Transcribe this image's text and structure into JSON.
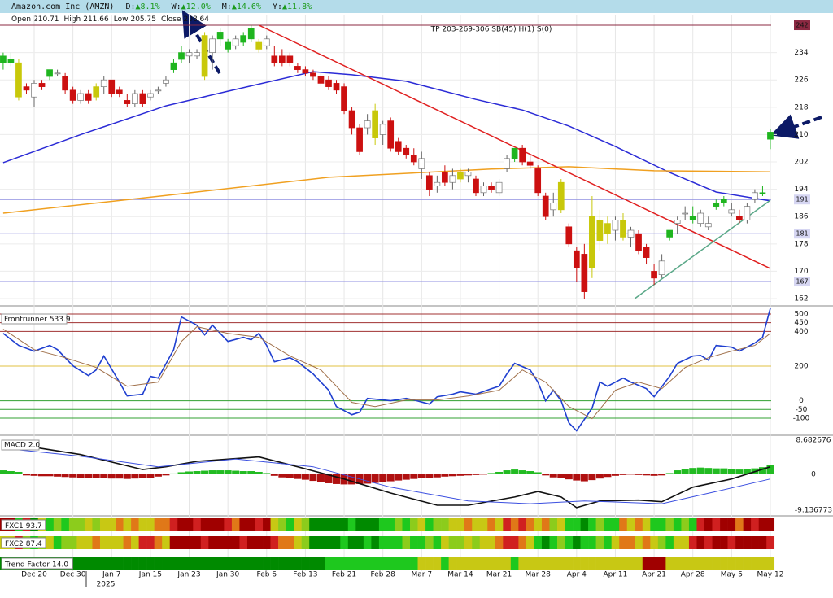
{
  "chart_data": [
    {
      "type": "candlestick",
      "title": "Amazon.com Inc (AMZN)",
      "changes": [
        {
          "label": "D:",
          "text": "▲8.1%"
        },
        {
          "label": "W:",
          "text": "▲12.0%"
        },
        {
          "label": "M:",
          "text": "▲14.6%"
        },
        {
          "label": "Y:",
          "text": "▲11.8%"
        }
      ],
      "ohlc_labels": [
        "Open",
        "High",
        "Low",
        "Close"
      ],
      "annotation": "TP 203-269-306 SB(45) H(1) S(0)",
      "year_label": "2025",
      "categories": [
        null,
        null,
        null,
        null,
        "Dec 20",
        null,
        null,
        null,
        null,
        "Dec 30",
        null,
        null,
        null,
        null,
        "Jan 7",
        null,
        null,
        null,
        null,
        "Jan 15",
        null,
        null,
        null,
        null,
        "Jan 23",
        null,
        null,
        null,
        null,
        "Jan 30",
        null,
        null,
        null,
        null,
        "Feb 6",
        null,
        null,
        null,
        null,
        "Feb 13",
        null,
        null,
        null,
        null,
        "Feb 21",
        null,
        null,
        null,
        null,
        "Feb 28",
        null,
        null,
        null,
        null,
        "Mar 7",
        null,
        null,
        null,
        null,
        "Mar 14",
        null,
        null,
        null,
        null,
        "Mar 21",
        null,
        null,
        null,
        null,
        "Mar 28",
        null,
        null,
        null,
        null,
        "Apr 4",
        null,
        null,
        null,
        null,
        "Apr 11",
        null,
        null,
        null,
        null,
        "Apr 21",
        null,
        null,
        null,
        null,
        "Apr 28",
        null,
        null,
        null,
        null,
        "May 5",
        null,
        null,
        null,
        null,
        "May 12"
      ],
      "open": [
        231,
        232,
        231,
        224,
        221,
        225,
        227,
        228,
        227,
        223,
        220,
        222,
        221,
        224,
        226,
        223,
        220,
        219,
        222,
        221,
        223,
        225,
        229,
        232,
        234,
        233,
        239,
        234,
        238,
        237,
        236,
        237,
        241,
        237,
        236,
        233,
        233,
        233,
        230,
        229,
        228,
        227,
        226,
        225,
        224,
        217,
        212,
        212,
        217,
        210,
        214,
        208,
        206,
        204,
        200,
        198,
        195,
        199,
        196,
        199,
        198,
        197,
        193,
        195,
        193,
        200,
        203,
        206,
        202,
        200,
        192,
        188,
        188,
        183,
        176,
        175,
        171,
        185,
        181,
        182,
        185,
        180,
        181,
        177,
        170,
        169,
        180,
        184,
        187,
        186,
        184,
        184,
        189,
        190,
        188,
        186,
        185,
        191,
        193,
        210.71
      ],
      "high": [
        234,
        234,
        232,
        225,
        226,
        226,
        229,
        229,
        228,
        224,
        223,
        223,
        225,
        227,
        226,
        224,
        222,
        223,
        223,
        223,
        224,
        227,
        232,
        236,
        235,
        235,
        240,
        239,
        241,
        238,
        239,
        240,
        242,
        238,
        239,
        236,
        235,
        234,
        231,
        230,
        229,
        228,
        227,
        226,
        225,
        218,
        213,
        216,
        219,
        214,
        215,
        209,
        207,
        206,
        205,
        199,
        198,
        201,
        200,
        200,
        200,
        198,
        196,
        196,
        197,
        204,
        206,
        207,
        204,
        201,
        193,
        193,
        197,
        184,
        177,
        178,
        192,
        188,
        186,
        186,
        187,
        183,
        182,
        178,
        172,
        175,
        182,
        186,
        189,
        189,
        188,
        186,
        191,
        192,
        190,
        188,
        190,
        194,
        195,
        211.66
      ],
      "low": [
        229,
        230,
        220,
        222,
        218,
        223,
        226,
        227,
        222,
        219,
        219,
        219,
        220,
        222,
        221,
        221,
        218,
        218,
        218,
        220,
        222,
        224,
        228,
        231,
        231,
        232,
        226,
        229,
        236,
        234,
        235,
        236,
        237,
        234,
        235,
        230,
        230,
        230,
        228,
        227,
        226,
        224,
        223,
        222,
        216,
        210,
        204,
        210,
        207,
        207,
        205,
        204,
        203,
        201,
        197,
        192,
        193,
        195,
        194,
        196,
        196,
        192,
        192,
        193,
        192,
        199,
        202,
        201,
        200,
        192,
        185,
        186,
        187,
        177,
        167,
        162,
        168,
        176,
        178,
        179,
        179,
        177,
        175,
        172,
        166,
        168,
        179,
        181,
        185,
        184,
        183,
        182,
        188,
        189,
        186,
        184,
        184,
        190,
        192,
        205.75
      ],
      "close": [
        233,
        231,
        221,
        223,
        225,
        224,
        229,
        228,
        223,
        220,
        222,
        220,
        224,
        226,
        222,
        222,
        219,
        222,
        219,
        222,
        223,
        226,
        231,
        234,
        233,
        234,
        227,
        238,
        240,
        235,
        238,
        239,
        238,
        235,
        238,
        231,
        231,
        231,
        229,
        228,
        227,
        225,
        224,
        223,
        217,
        212,
        205,
        214,
        209,
        213,
        206,
        205,
        204,
        202,
        203,
        194,
        196,
        196,
        198,
        197,
        199,
        193,
        195,
        194,
        196,
        203,
        206,
        202,
        201,
        193,
        186,
        190,
        196,
        178,
        171,
        164,
        186,
        179,
        184,
        185,
        180,
        182,
        176,
        174,
        168,
        173,
        182,
        185,
        187,
        185,
        187,
        183,
        190,
        191,
        187,
        185,
        189,
        193,
        193,
        208.64
      ],
      "candle_colors": "ggyrwrgwrrwrywrrrwrwwwggwwywggwggywrrrrrrrrrrrrwywrrrrwrwrwywrwrwwgrrrrwyrrryyywywrrrwgwwgwwggwrwwgg",
      "palette": {
        "g": "#1fb51f",
        "r": "#cc1010",
        "y": "#c8c80a",
        "w": "#ffffff"
      },
      "ylim": [
        160.1,
        245.1
      ],
      "yticks": [
        162,
        170,
        178,
        186,
        194,
        202,
        210,
        218,
        226,
        234
      ],
      "grid": true,
      "levels": [
        {
          "value": 242,
          "color": "#8b2942",
          "box_color": "#8b2942",
          "text_color": "#ffffff"
        },
        {
          "value": 191,
          "color": "#8f8fe0",
          "box_color": "#d6d6f2",
          "text_color": "#1a1a60"
        },
        {
          "value": 181,
          "color": "#8f8fe0",
          "box_color": "#d6d6f2",
          "text_color": "#1a1a60"
        },
        {
          "value": 167,
          "color": "#8f8fe0",
          "box_color": "#d6d6f2",
          "text_color": "#1a1a60"
        }
      ],
      "overlays": [
        {
          "color": "#2b2bd6",
          "x": [
            0,
            10,
            21,
            29,
            40,
            45,
            52,
            61,
            67,
            73,
            79,
            86,
            92,
            99
          ],
          "values": [
            201.8,
            210,
            218.4,
            222.7,
            228.4,
            227.5,
            225.6,
            220.3,
            217.2,
            212.5,
            206.5,
            198.9,
            193.2,
            190.6
          ]
        },
        {
          "color": "#f0a020",
          "x": [
            0,
            21,
            42,
            63,
            73,
            84,
            99
          ],
          "values": [
            187,
            192.2,
            197.5,
            199.9,
            200.6,
            199.4,
            199.1
          ]
        },
        {
          "color": "#e02020",
          "x": [
            33,
            99
          ],
          "values": [
            242,
            170.8
          ]
        },
        {
          "color": "#5aa888",
          "x": [
            81.5,
            99
          ],
          "values": [
            162,
            190.8
          ]
        }
      ]
    },
    {
      "type": "line",
      "title": "Frontrunner",
      "value": 533.9,
      "ylim": [
        -189.2,
        542.2
      ],
      "yticks": [
        500,
        450,
        400,
        200,
        0,
        -50,
        -100
      ],
      "tick_colors": [
        "#a03030",
        "#a03030",
        "#a03030",
        "#e0c040",
        "#30a030",
        "#30a030",
        "#30a030"
      ],
      "series": [
        {
          "color": "#1f3fd0",
          "x": [
            0,
            2,
            4,
            6,
            7,
            9,
            11,
            12,
            13,
            15,
            16,
            18,
            19,
            20,
            22,
            23,
            25,
            26,
            27,
            29,
            31,
            32,
            33,
            34,
            35,
            37,
            38,
            40,
            42,
            43,
            45,
            46,
            47,
            49,
            50,
            52,
            53,
            55,
            56,
            58,
            59,
            61,
            63,
            64,
            65,
            66,
            68,
            69,
            70,
            71,
            72,
            73,
            74,
            76,
            77,
            78,
            80,
            81,
            83,
            84,
            86,
            87,
            89,
            90,
            91,
            92,
            94,
            95,
            97,
            98,
            99
          ],
          "values": [
            389,
            319,
            286,
            319,
            295,
            202,
            145,
            178,
            258,
            108,
            28,
            38,
            141,
            131,
            295,
            483,
            436,
            380,
            436,
            342,
            366,
            352,
            389,
            319,
            225,
            248,
            225,
            155,
            61,
            -33,
            -80,
            -66,
            14,
            5,
            0,
            14,
            5,
            -19,
            23,
            38,
            52,
            38,
            70,
            84,
            155,
            216,
            178,
            108,
            0,
            61,
            0,
            -127,
            -173,
            -42,
            108,
            84,
            131,
            108,
            70,
            23,
            141,
            216,
            258,
            262,
            234,
            319,
            309,
            286,
            333,
            366,
            533.9
          ]
        },
        {
          "color": "#a0704a",
          "x": [
            0,
            4,
            8,
            12,
            16,
            20,
            23,
            25,
            29,
            33,
            37,
            41,
            45,
            48,
            52,
            56,
            60,
            64,
            67,
            70,
            73,
            76,
            79,
            82,
            85,
            88,
            91,
            94,
            97,
            99
          ],
          "values": [
            413,
            295,
            248,
            192,
            84,
            108,
            342,
            427,
            389,
            366,
            258,
            178,
            -9,
            -33,
            5,
            5,
            28,
            61,
            178,
            108,
            -33,
            -103,
            61,
            108,
            70,
            192,
            248,
            286,
            319,
            389
          ]
        }
      ]
    },
    {
      "type": "macd",
      "title": "MACD 2.0",
      "ylim": [
        -10.18,
        9.3
      ],
      "yticks": [
        8.682676,
        0,
        -9.136773
      ],
      "pos_color": "#22bb22",
      "neg_color": "#b01010",
      "histogram": [
        1.0,
        0.8,
        0.6,
        -0.3,
        -0.4,
        -0.5,
        -0.5,
        -0.6,
        -0.7,
        -0.8,
        -0.9,
        -1.0,
        -1.0,
        -1.0,
        -1.1,
        -1.1,
        -1.2,
        -1.1,
        -1.0,
        -0.9,
        -0.6,
        -0.3,
        0.2,
        0.5,
        0.7,
        0.8,
        0.9,
        1.0,
        1.0,
        1.0,
        0.9,
        0.8,
        0.8,
        0.6,
        0.3,
        -0.4,
        -0.8,
        -1.0,
        -1.2,
        -1.4,
        -1.7,
        -2.0,
        -2.3,
        -2.5,
        -2.6,
        -2.6,
        -2.5,
        -2.4,
        -2.2,
        -2.0,
        -1.8,
        -1.6,
        -1.4,
        -1.2,
        -1.0,
        -0.9,
        -0.8,
        -0.6,
        -0.5,
        -0.4,
        -0.3,
        -0.2,
        -0.1,
        0.3,
        0.6,
        1.0,
        1.2,
        1.0,
        0.8,
        0.5,
        -0.3,
        -0.8,
        -1.0,
        -1.3,
        -1.6,
        -1.8,
        -1.5,
        -1.1,
        -0.7,
        -0.4,
        -0.2,
        -0.1,
        -0.2,
        -0.3,
        -0.4,
        -0.3,
        0.3,
        1.0,
        1.4,
        1.6,
        1.7,
        1.6,
        1.5,
        1.5,
        1.4,
        1.2,
        1.3,
        1.5,
        1.8,
        2.3
      ],
      "series": [
        {
          "color": "#111111",
          "x": [
            0,
            10,
            18,
            21,
            25,
            33,
            38,
            44,
            50,
            56,
            60,
            66,
            69,
            72,
            74,
            77,
            82,
            85,
            89,
            94,
            99
          ],
          "values": [
            8.1,
            5,
            1.2,
            1.9,
            3.3,
            4.4,
            1.9,
            -1.2,
            -4.8,
            -7.9,
            -7.9,
            -5.8,
            -4.4,
            -5.8,
            -8.5,
            -6.8,
            -6.6,
            -7.0,
            -3.3,
            -1.2,
            1.9
          ]
        },
        {
          "color": "#3b4fe0",
          "x": [
            0,
            10,
            20,
            30,
            40,
            50,
            60,
            68,
            75,
            85,
            92,
            99
          ],
          "values": [
            6.6,
            4.6,
            1.9,
            3.9,
            1.9,
            -3.3,
            -6.8,
            -7.5,
            -6.8,
            -7.5,
            -4.4,
            -1.2
          ]
        }
      ]
    },
    {
      "type": "strip",
      "palette": {
        "R": "#a00000",
        "r": "#d02020",
        "o": "#e07818",
        "y": "#c8c814",
        "l": "#8ccc1c",
        "g": "#1ec81e",
        "G": "#008a00"
      },
      "rows": [
        {
          "label": "FXC1",
          "value": 93.7,
          "codes": "RRgrGyglgllylyyoyoyyoorRRrRRRroRRrRylgylGGGGGgGGGgglglyglly yoyyoyroroyolyggGglggoyoygglglgrRrRRoRrRR"
        },
        {
          "label": "FXC2",
          "value": 87.4,
          "codes": "yyrlglygllyyoyyyoyrroyRRRRrRRRRrRRRrooylGGGGgGGgGgggl gglgyllylyyorroygGglgGgglgyooyoylgyyrRrRRrRRRRr"
        },
        {
          "label": "Trend Factor",
          "value": 14,
          "value_label": "14.0",
          "codes": "GGGGGGGGGGGGGGGGGGGGGGGGGGGGGGGGGGGGGGGGGGggggggggggggyyygyyyyyyyygyyyyyyyyyyyyyyyyRRRyyyyyyyyyyyyyy"
        }
      ]
    }
  ]
}
